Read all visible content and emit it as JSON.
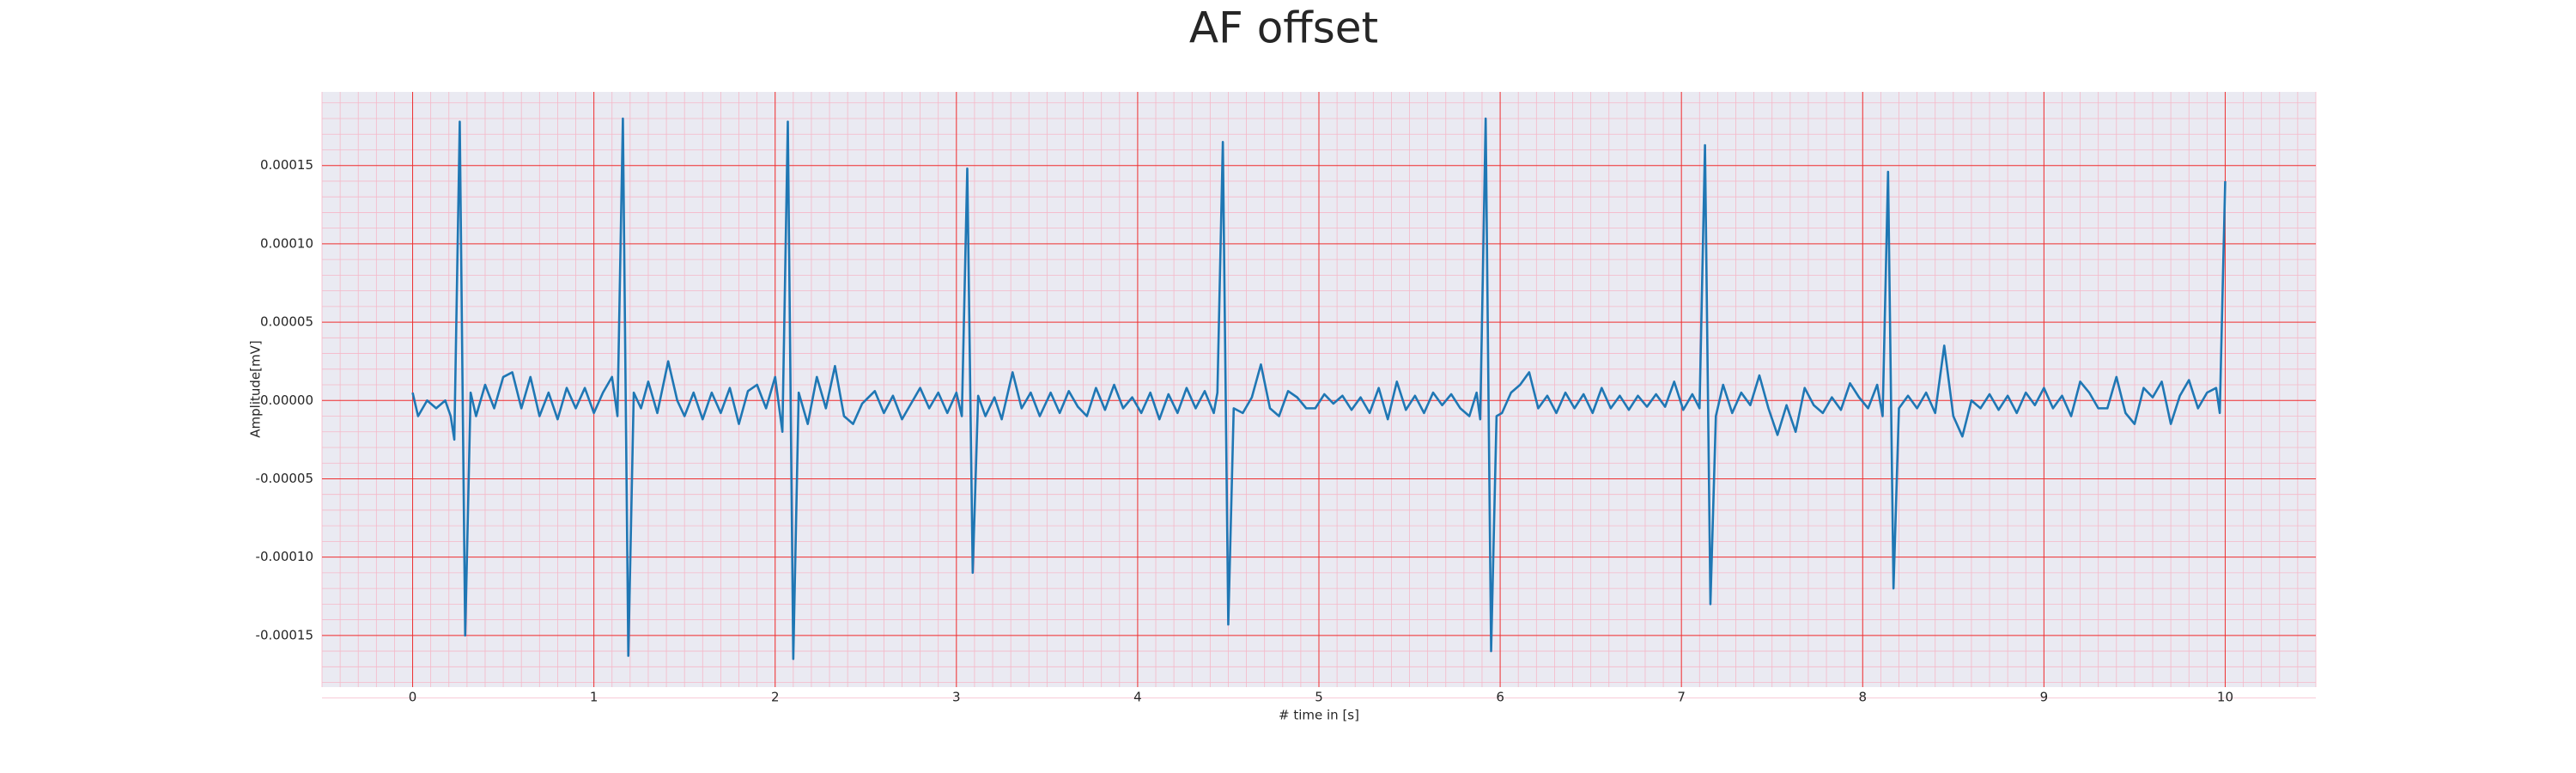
{
  "chart_data": {
    "type": "line",
    "title": "AF offset",
    "x_label": "# time in [s]",
    "y_label": "Amplitude[mV]",
    "color": "#1f77b4",
    "grid": true,
    "minor_grid": true,
    "xlim": [
      -0.5,
      10.5
    ],
    "ylim": [
      -0.000183,
      0.000197
    ],
    "xticks": [
      0,
      1,
      2,
      3,
      4,
      5,
      6,
      7,
      8,
      9,
      10
    ],
    "yticks": [
      -0.00015,
      {
        "value": -0.0001,
        "label": "-0.00010"
      },
      {
        "value": -5e-05,
        "label": "-0.00005"
      },
      {
        "value": 0,
        "label": "0.00000"
      },
      {
        "value": 5e-05,
        "label": "0.00005"
      },
      {
        "value": 0.0001,
        "label": "0.00010"
      },
      0.00015
    ],
    "x": [
      0,
      0.03,
      0.08,
      0.13,
      0.18,
      0.21,
      0.23,
      0.26,
      0.29,
      0.32,
      0.35,
      0.4,
      0.45,
      0.5,
      0.55,
      0.6,
      0.65,
      0.7,
      0.75,
      0.8,
      0.85,
      0.9,
      0.95,
      1.0,
      1.05,
      1.1,
      1.13,
      1.16,
      1.19,
      1.22,
      1.26,
      1.3,
      1.35,
      1.41,
      1.46,
      1.5,
      1.55,
      1.6,
      1.65,
      1.7,
      1.75,
      1.8,
      1.85,
      1.9,
      1.95,
      2.0,
      2.04,
      2.07,
      2.1,
      2.13,
      2.18,
      2.23,
      2.28,
      2.33,
      2.38,
      2.43,
      2.48,
      2.55,
      2.6,
      2.65,
      2.7,
      2.75,
      2.8,
      2.85,
      2.9,
      2.95,
      3.0,
      3.03,
      3.06,
      3.09,
      3.12,
      3.16,
      3.21,
      3.25,
      3.31,
      3.36,
      3.41,
      3.46,
      3.52,
      3.57,
      3.62,
      3.67,
      3.72,
      3.77,
      3.82,
      3.87,
      3.92,
      3.97,
      4.02,
      4.07,
      4.12,
      4.17,
      4.22,
      4.27,
      4.32,
      4.37,
      4.42,
      4.44,
      4.47,
      4.5,
      4.53,
      4.58,
      4.63,
      4.68,
      4.73,
      4.78,
      4.83,
      4.88,
      4.93,
      4.98,
      5.03,
      5.08,
      5.13,
      5.18,
      5.23,
      5.28,
      5.33,
      5.38,
      5.43,
      5.48,
      5.53,
      5.58,
      5.63,
      5.68,
      5.73,
      5.78,
      5.83,
      5.87,
      5.89,
      5.92,
      5.95,
      5.98,
      6.01,
      6.06,
      6.11,
      6.16,
      6.21,
      6.26,
      6.31,
      6.36,
      6.41,
      6.46,
      6.51,
      6.56,
      6.61,
      6.66,
      6.71,
      6.76,
      6.81,
      6.86,
      6.91,
      6.96,
      7.01,
      7.06,
      7.1,
      7.13,
      7.16,
      7.19,
      7.23,
      7.28,
      7.33,
      7.38,
      7.43,
      7.48,
      7.53,
      7.58,
      7.63,
      7.68,
      7.73,
      7.78,
      7.83,
      7.88,
      7.93,
      7.98,
      8.03,
      8.08,
      8.11,
      8.14,
      8.17,
      8.2,
      8.25,
      8.3,
      8.35,
      8.4,
      8.45,
      8.5,
      8.55,
      8.6,
      8.65,
      8.7,
      8.75,
      8.8,
      8.85,
      8.9,
      8.95,
      9.0,
      9.05,
      9.1,
      9.15,
      9.2,
      9.25,
      9.3,
      9.35,
      9.4,
      9.45,
      9.5,
      9.55,
      9.6,
      9.65,
      9.7,
      9.75,
      9.8,
      9.85,
      9.9,
      9.95,
      9.97,
      10.0
    ],
    "values": [
      5e-06,
      -1e-05,
      0,
      -5e-06,
      0,
      -1e-05,
      -2.5e-05,
      0.000178,
      -0.00015,
      5e-06,
      -1e-05,
      1e-05,
      -5e-06,
      1.5e-05,
      1.8e-05,
      -5e-06,
      1.5e-05,
      -1e-05,
      5e-06,
      -1.2e-05,
      8e-06,
      -5e-06,
      8e-06,
      -8e-06,
      5e-06,
      1.5e-05,
      -1e-05,
      0.00018,
      -0.000163,
      5e-06,
      -5e-06,
      1.2e-05,
      -8e-06,
      2.5e-05,
      0,
      -1e-05,
      5e-06,
      -1.2e-05,
      5e-06,
      -8e-06,
      8e-06,
      -1.5e-05,
      6e-06,
      1e-05,
      -5e-06,
      1.5e-05,
      -2e-05,
      0.000178,
      -0.000165,
      5e-06,
      -1.5e-05,
      1.5e-05,
      -5e-06,
      2.2e-05,
      -1e-05,
      -1.5e-05,
      -2e-06,
      6e-06,
      -8e-06,
      3e-06,
      -1.2e-05,
      -2e-06,
      8e-06,
      -5e-06,
      5e-06,
      -8e-06,
      5e-06,
      -1e-05,
      0.000148,
      -0.00011,
      3e-06,
      -1e-05,
      2e-06,
      -1.2e-05,
      1.8e-05,
      -5e-06,
      5e-06,
      -1e-05,
      5e-06,
      -8e-06,
      6e-06,
      -4e-06,
      -1e-05,
      8e-06,
      -6e-06,
      1e-05,
      -5e-06,
      2e-06,
      -8e-06,
      5e-06,
      -1.2e-05,
      4e-06,
      -8e-06,
      8e-06,
      -5e-06,
      6e-06,
      -8e-06,
      5e-06,
      0.000165,
      -0.000143,
      -5e-06,
      -8e-06,
      2e-06,
      2.3e-05,
      -5e-06,
      -1e-05,
      6e-06,
      2e-06,
      -5e-06,
      -5e-06,
      4e-06,
      -2e-06,
      3e-06,
      -6e-06,
      2e-06,
      -8e-06,
      8e-06,
      -1.2e-05,
      1.2e-05,
      -6e-06,
      3e-06,
      -8e-06,
      5e-06,
      -3e-06,
      4e-06,
      -5e-06,
      -1e-05,
      5e-06,
      -1.2e-05,
      0.00018,
      -0.00016,
      -1e-05,
      -8e-06,
      5e-06,
      1e-05,
      1.8e-05,
      -5e-06,
      3e-06,
      -8e-06,
      5e-06,
      -5e-06,
      4e-06,
      -8e-06,
      8e-06,
      -5e-06,
      3e-06,
      -6e-06,
      3e-06,
      -4e-06,
      4e-06,
      -4e-06,
      1.2e-05,
      -6e-06,
      4e-06,
      -5e-06,
      0.000163,
      -0.00013,
      -1e-05,
      1e-05,
      -8e-06,
      5e-06,
      -3e-06,
      1.6e-05,
      -5e-06,
      -2.2e-05,
      -3e-06,
      -2e-05,
      8e-06,
      -3e-06,
      -8e-06,
      2e-06,
      -6e-06,
      1.1e-05,
      2e-06,
      -5e-06,
      1e-05,
      -1e-05,
      0.000146,
      -0.00012,
      -5e-06,
      3e-06,
      -5e-06,
      5e-06,
      -8e-06,
      3.5e-05,
      -1e-05,
      -2.3e-05,
      0,
      -5e-06,
      4e-06,
      -6e-06,
      3e-06,
      -8e-06,
      5e-06,
      -3e-06,
      8e-06,
      -5e-06,
      3e-06,
      -1e-05,
      1.2e-05,
      5e-06,
      -5e-06,
      -5e-06,
      1.5e-05,
      -8e-06,
      -1.5e-05,
      8e-06,
      2e-06,
      1.2e-05,
      -1.5e-05,
      3e-06,
      1.3e-05,
      -5e-06,
      5e-06,
      8e-06,
      -8e-06,
      0.00014
    ]
  }
}
